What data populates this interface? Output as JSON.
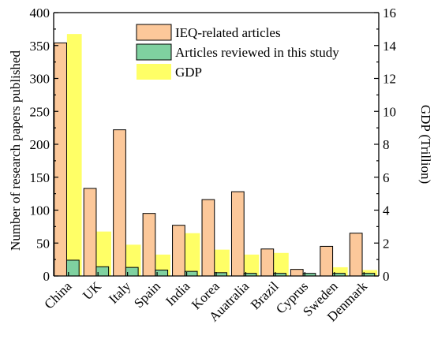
{
  "chart_data": {
    "type": "bar",
    "categories": [
      "China",
      "UK",
      "Italy",
      "Spain",
      "India",
      "Korea",
      "Auatralia",
      "Brazil",
      "Cyprus",
      "Sweden",
      "Denmark"
    ],
    "series": [
      {
        "name": "GDP",
        "axis": "right",
        "color": "#ffff66",
        "values": [
          14.7,
          2.7,
          1.9,
          1.3,
          2.6,
          1.6,
          1.3,
          1.4,
          0.03,
          0.53,
          0.36
        ]
      },
      {
        "name": "IEQ-related articles",
        "axis": "left",
        "color": "#fcc89a",
        "values": [
          354,
          133,
          222,
          95,
          77,
          116,
          128,
          41,
          10,
          45,
          65
        ]
      },
      {
        "name": "Articles reviewed in this study",
        "axis": "left",
        "color": "#7fd1a0",
        "values": [
          24,
          14,
          13,
          9,
          7,
          5,
          4,
          4,
          4,
          4,
          4
        ]
      }
    ],
    "legend": [
      "IEQ-related articles",
      "Articles reviewed in this study",
      "GDP"
    ],
    "legend_position": "top-right",
    "ylabel": "Number of research papers published",
    "y2label": "GDP (Trillion)",
    "ylim": [
      0,
      400
    ],
    "y2lim": [
      0,
      16
    ],
    "yticks": [
      "0",
      "50",
      "100",
      "150",
      "200",
      "250",
      "300",
      "350",
      "400"
    ],
    "y2ticks": [
      "0",
      "2",
      "4",
      "6",
      "8",
      "10",
      "12",
      "14",
      "16"
    ],
    "grid": false
  }
}
